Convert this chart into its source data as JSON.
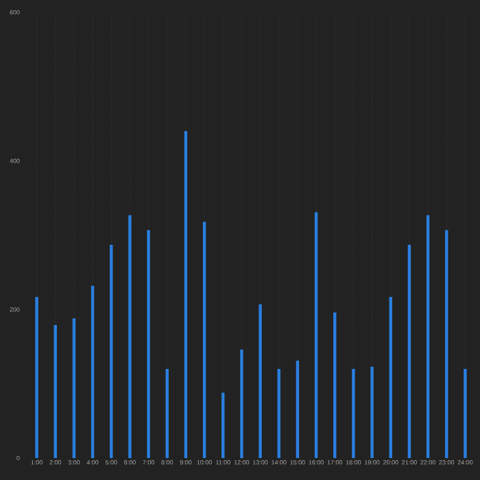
{
  "chart_data": {
    "type": "bar",
    "categories": [
      "1:00",
      "2:00",
      "3:00",
      "4:00",
      "5:00",
      "6:00",
      "7:00",
      "8:00",
      "9:00",
      "10:00",
      "11:00",
      "12:00",
      "13:00",
      "14:00",
      "15:00",
      "16:00",
      "17:00",
      "18:00",
      "19:00",
      "20:00",
      "21:00",
      "22:00",
      "23:00",
      "24:00"
    ],
    "values": [
      217,
      179,
      188,
      232,
      287,
      327,
      307,
      120,
      440,
      318,
      88,
      146,
      207,
      120,
      131,
      331,
      196,
      120,
      123,
      217,
      287,
      327,
      307,
      120
    ],
    "color": "#2a7fe0",
    "ylim": [
      0,
      600
    ],
    "yticks": [
      0,
      200,
      400,
      600
    ],
    "grid": "x"
  }
}
